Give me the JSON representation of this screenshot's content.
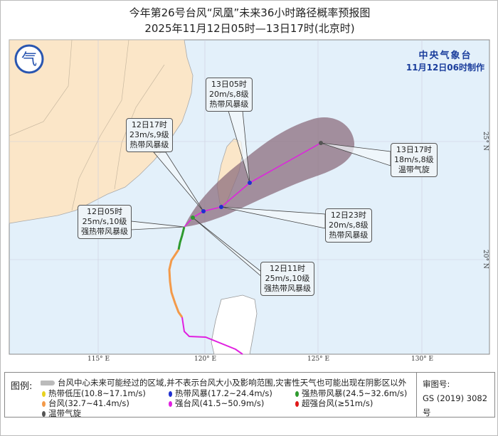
{
  "header": {
    "title": "今年第26号台风“凤凰”未来36小时路径概率预报图",
    "subtitle": "2025年11月12日05时—13日17时(北京时)"
  },
  "issuer": {
    "name": "中央气象台",
    "issued": "11月12日06时制作"
  },
  "forecast_points": [
    {
      "time": "12日05时",
      "wind": "25m/s,10级",
      "level": "强热带风暴级"
    },
    {
      "time": "12日11时",
      "wind": "25m/s,10级",
      "level": "强热带风暴级"
    },
    {
      "time": "12日17时",
      "wind": "23m/s,9级",
      "level": "热带风暴级"
    },
    {
      "time": "12日23时",
      "wind": "20m/s,8级",
      "level": "热带风暴级"
    },
    {
      "time": "13日05时",
      "wind": "20m/s,8级",
      "level": "热带风暴级"
    },
    {
      "time": "13日17时",
      "wind": "18m/s,8级",
      "level": "温带气旋"
    }
  ],
  "axes": {
    "lon": [
      "115° E",
      "120° E",
      "125° E",
      "130° E"
    ],
    "lat": [
      "25° N",
      "20° N"
    ]
  },
  "legend": {
    "title": "图例:",
    "cone": "台风中心未来可能经过的区域,并不表示台风大小及影响范围,灾害性天气也可能出现在阴影区以外",
    "items": [
      {
        "label": "热带低压(10.8~17.1m/s)",
        "color": "#e8d21e"
      },
      {
        "label": "热带风暴(17.2~24.4m/s)",
        "color": "#1f2fd0"
      },
      {
        "label": "强热带风暴(24.5~32.6m/s)",
        "color": "#2e9a2e"
      },
      {
        "label": "台风(32.7~41.4m/s)",
        "color": "#f39a4a"
      },
      {
        "label": "强台风(41.5~50.9m/s)",
        "color": "#e020e0"
      },
      {
        "label": "超强台风(≥51m/s)",
        "color": "#e01818"
      },
      {
        "label": "温带气旋",
        "color": "#555555"
      }
    ],
    "approval_label": "审图号:",
    "approval_no": "GS (2019) 3082号"
  },
  "colors": {
    "sea": "#e3f0fa",
    "land": "#fbe6c8",
    "cone": "#8c6d7e",
    "track": "#e020e0"
  }
}
